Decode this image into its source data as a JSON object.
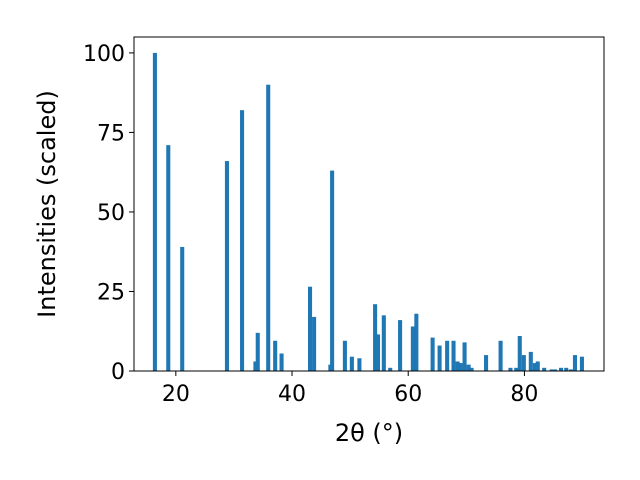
{
  "chart_data": {
    "type": "bar",
    "xlabel": "2θ (°)",
    "ylabel": "Intensities (scaled)",
    "xlim": [
      12.8,
      93.7
    ],
    "ylim": [
      0,
      105
    ],
    "xticks": [
      20,
      40,
      60,
      80
    ],
    "yticks": [
      0,
      25,
      50,
      75,
      100
    ],
    "bar_width": 0.7,
    "grid": false,
    "colors": {
      "bar": "#1f77b4",
      "axis": "#000000"
    },
    "series": [
      {
        "x": [
          16.4,
          18.7,
          21.1,
          28.8,
          31.4,
          33.7,
          34.1,
          35.9,
          37.1,
          38.2,
          43.1,
          43.8,
          46.6,
          46.9,
          49.1,
          50.3,
          51.6,
          54.3,
          54.8,
          55.8,
          56.9,
          58.6,
          60.8,
          61.4,
          64.2,
          65.4,
          66.7,
          67.8,
          68.5,
          69.0,
          69.7,
          70.4,
          70.9,
          73.4,
          75.9,
          77.6,
          78.6,
          79.2,
          79.9,
          81.1,
          81.8,
          82.3,
          83.4,
          84.7,
          85.3,
          86.3,
          87.2,
          88.0,
          88.7,
          89.9
        ],
        "values": [
          100,
          71,
          39,
          66,
          82,
          3,
          12,
          90,
          9.5,
          5.5,
          26.5,
          17,
          2,
          63,
          9.5,
          4.5,
          4,
          21,
          11.5,
          17.5,
          1,
          16,
          14,
          18,
          10.5,
          8,
          9.5,
          9.5,
          3,
          2.5,
          9,
          2,
          1,
          5,
          9.5,
          1,
          1,
          11,
          5,
          6,
          2.5,
          3,
          1,
          0.5,
          0.5,
          1,
          1,
          0.5,
          5,
          4.5
        ]
      }
    ]
  }
}
